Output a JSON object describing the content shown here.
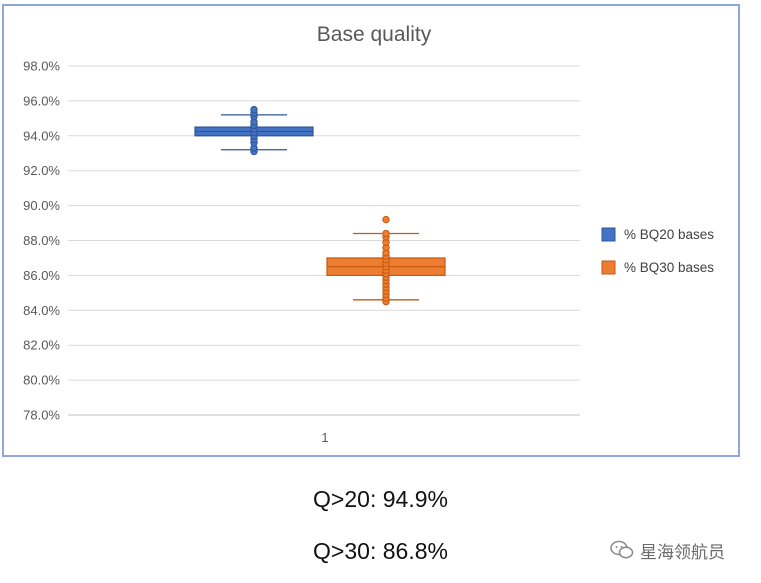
{
  "chart_data": {
    "type": "box",
    "title": "Base quality",
    "categories": [
      "1"
    ],
    "ylim": [
      0.78,
      0.98
    ],
    "yticks": [
      "78.0%",
      "80.0%",
      "82.0%",
      "84.0%",
      "86.0%",
      "88.0%",
      "90.0%",
      "92.0%",
      "94.0%",
      "96.0%",
      "98.0%"
    ],
    "grid": true,
    "legend_position": "right",
    "series": [
      {
        "name": "% BQ20 bases",
        "color": "#4472c4",
        "stroke": "#2f5597",
        "whisker_low": 0.932,
        "q1": 0.94,
        "median": 0.9425,
        "q3": 0.945,
        "whisker_high": 0.952,
        "points": [
          0.931,
          0.933,
          0.936,
          0.938,
          0.94,
          0.942,
          0.944,
          0.946,
          0.948,
          0.951,
          0.953,
          0.955
        ]
      },
      {
        "name": "% BQ30 bases",
        "color": "#ed7d31",
        "stroke": "#c55a11",
        "whisker_low": 0.846,
        "q1": 0.86,
        "median": 0.865,
        "q3": 0.87,
        "whisker_high": 0.884,
        "points": [
          0.845,
          0.847,
          0.849,
          0.851,
          0.853,
          0.855,
          0.857,
          0.859,
          0.861,
          0.863,
          0.865,
          0.867,
          0.869,
          0.871,
          0.873,
          0.876,
          0.879,
          0.882,
          0.884,
          0.892
        ]
      }
    ]
  },
  "captions": {
    "q20": "Q>20: 94.9%",
    "q30": "Q>30: 86.8%"
  },
  "watermark": {
    "icon": "wechat-icon",
    "text": "星海领航员"
  }
}
